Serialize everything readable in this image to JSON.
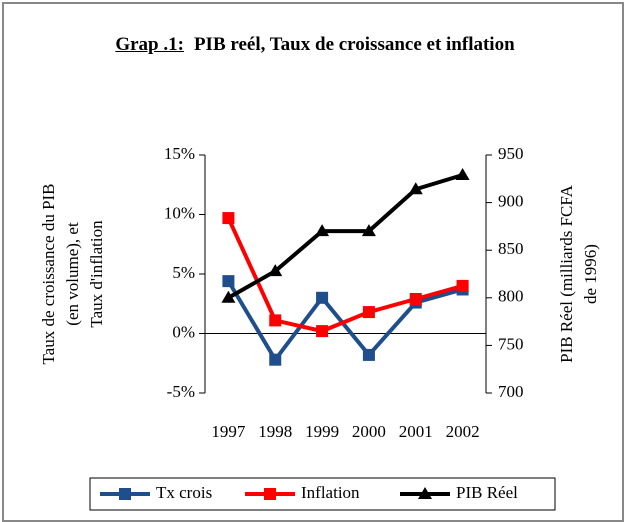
{
  "chart_data": {
    "type": "line",
    "title_label": "Grap .1:",
    "title": "PIB reél, Taux de croissance et inflation",
    "ylabel": [
      "Taux de croissance du PIB",
      "(en volume), et",
      "Taux d'inflation"
    ],
    "y2label": [
      "PIB Réel (milliards FCFA",
      "de 1996)"
    ],
    "categories": [
      "1997",
      "1998",
      "1999",
      "2000",
      "2001",
      "2002"
    ],
    "ylim": [
      -5,
      15
    ],
    "yticks": [
      {
        "value": -5,
        "label": "-5%"
      },
      {
        "value": 0,
        "label": "0%"
      },
      {
        "value": 5,
        "label": "5%"
      },
      {
        "value": 10,
        "label": "10%"
      },
      {
        "value": 15,
        "label": "15%"
      }
    ],
    "y2lim": [
      700,
      950
    ],
    "y2ticks": [
      700,
      750,
      800,
      850,
      900,
      950
    ],
    "legend": "bottom",
    "series": [
      {
        "name": "Tx crois",
        "color": "#1f4e8c",
        "marker": "square",
        "values": [
          4.4,
          -2.2,
          3.0,
          -1.8,
          2.6,
          3.7
        ]
      },
      {
        "name": "Inflation",
        "color": "#ff0000",
        "marker": "square",
        "values": [
          9.7,
          1.1,
          0.2,
          1.8,
          2.9,
          4.0
        ]
      },
      {
        "name": "PIB Réel",
        "color": "#000000",
        "marker": "triangle",
        "axis": "y2",
        "values": [
          800,
          828,
          870,
          870,
          914,
          929
        ]
      }
    ]
  }
}
